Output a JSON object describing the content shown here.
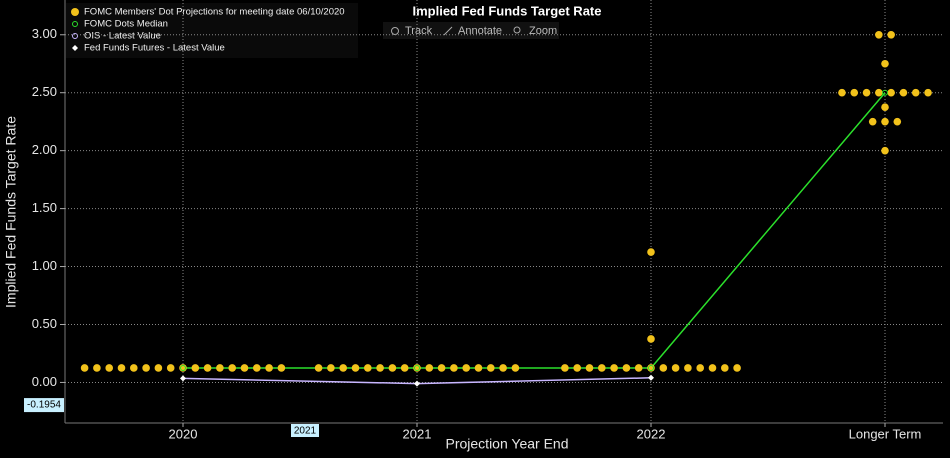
{
  "chart_data": {
    "type": "dot",
    "title": "Implied Fed Funds Target Rate",
    "toolbar": [
      "Track",
      "Annotate",
      "Zoom"
    ],
    "y_label": "Implied Fed Funds Target Rate",
    "x_label": "Projection Year End",
    "categories": [
      "2020",
      "2021",
      "2022",
      "Longer Term"
    ],
    "ylim": [
      -0.35,
      3.3
    ],
    "yticks": [
      {
        "value": 0,
        "label": "0.00"
      },
      {
        "value": 0.5,
        "label": "0.50"
      },
      {
        "value": 1,
        "label": "1.00"
      },
      {
        "value": 1.5,
        "label": "1.50"
      },
      {
        "value": 2,
        "label": "2.00"
      },
      {
        "value": 2.5,
        "label": "2.50"
      },
      {
        "value": 3,
        "label": "3.00"
      }
    ],
    "grid": true,
    "cursor": {
      "y": -0.1954,
      "x_label": "2021"
    },
    "series": [
      {
        "name": "FOMC Members' Dot Projections for meeting date 06/10/2020",
        "color": "#f2c21b",
        "values": [
          [
            0.125,
            0.125,
            0.125,
            0.125,
            0.125,
            0.125,
            0.125,
            0.125,
            0.125,
            0.125,
            0.125,
            0.125,
            0.125,
            0.125,
            0.125,
            0.125,
            0.125
          ],
          [
            0.125,
            0.125,
            0.125,
            0.125,
            0.125,
            0.125,
            0.125,
            0.125,
            0.125,
            0.125,
            0.125,
            0.125,
            0.125,
            0.125,
            0.125,
            0.125,
            0.125
          ],
          [
            0.125,
            0.125,
            0.125,
            0.125,
            0.125,
            0.125,
            0.125,
            0.125,
            0.125,
            0.125,
            0.125,
            0.125,
            0.125,
            0.125,
            0.125,
            0.375,
            1.125
          ],
          [
            3,
            3,
            2.75,
            2.5,
            2.5,
            2.5,
            2.5,
            2.5,
            2.5,
            2.5,
            2.5,
            2.375,
            2.25,
            2.25,
            2.25,
            2
          ]
        ]
      },
      {
        "name": "FOMC Dots Median",
        "color": "#2be02b",
        "values": [
          0.125,
          0.125,
          0.125,
          2.5
        ]
      },
      {
        "name": "OIS - Latest Value",
        "color": "#c8b6ff",
        "values": [
          0.035,
          -0.01,
          0.04,
          null
        ]
      },
      {
        "name": "Fed Funds Futures - Latest Value",
        "color": "#ffffff",
        "values": [
          0.035,
          -0.01,
          0.04,
          null
        ]
      }
    ]
  }
}
